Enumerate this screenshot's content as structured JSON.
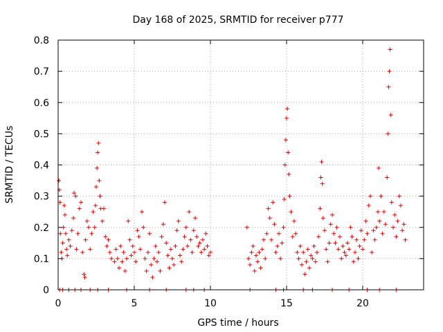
{
  "chart_data": {
    "type": "scatter",
    "title": "Day 168 of 2025, SRMTID for receiver p777",
    "xlabel": "GPS time / hours",
    "ylabel": "SRMTID / TECUs",
    "xlim": [
      0,
      24
    ],
    "ylim": [
      0,
      0.8
    ],
    "x_ticks": [
      0,
      5,
      10,
      15,
      20
    ],
    "x_tick_labels": [
      "0",
      "5",
      "10",
      "15",
      "20"
    ],
    "y_ticks": [
      0,
      0.1,
      0.2,
      0.3,
      0.4,
      0.5,
      0.6,
      0.7,
      0.8
    ],
    "y_tick_labels": [
      "0",
      "0.1",
      "0.2",
      "0.3",
      "0.4",
      "0.5",
      "0.6",
      "0.7",
      "0.8"
    ],
    "grid": true,
    "marker": "+",
    "color": "#e00000",
    "series": [
      {
        "name": "SRMTID",
        "points": [
          [
            0.05,
            0.35
          ],
          [
            0.08,
            0.32
          ],
          [
            0.12,
            0.28
          ],
          [
            0.15,
            0.18
          ],
          [
            0.2,
            0.12
          ],
          [
            0.25,
            0.1
          ],
          [
            0.3,
            0.15
          ],
          [
            0.35,
            0.2
          ],
          [
            0.4,
            0.27
          ],
          [
            0.45,
            0.24
          ],
          [
            0.5,
            0.18
          ],
          [
            0.55,
            0.13
          ],
          [
            0.6,
            0.11
          ],
          [
            0.7,
            0.16
          ],
          [
            0.8,
            0.14
          ],
          [
            0.9,
            0.19
          ],
          [
            1.0,
            0.23
          ],
          [
            1.05,
            0.31
          ],
          [
            1.15,
            0.3
          ],
          [
            1.2,
            0.13
          ],
          [
            1.3,
            0.18
          ],
          [
            1.4,
            0.26
          ],
          [
            1.5,
            0.28
          ],
          [
            1.6,
            0.12
          ],
          [
            1.7,
            0.05
          ],
          [
            1.75,
            0.04
          ],
          [
            1.8,
            0.16
          ],
          [
            1.9,
            0.22
          ],
          [
            2.0,
            0.2
          ],
          [
            2.1,
            0.13
          ],
          [
            2.2,
            0.18
          ],
          [
            2.3,
            0.25
          ],
          [
            2.4,
            0.2
          ],
          [
            2.45,
            0.27
          ],
          [
            2.5,
            0.33
          ],
          [
            2.55,
            0.39
          ],
          [
            2.6,
            0.44
          ],
          [
            2.65,
            0.47
          ],
          [
            2.7,
            0.35
          ],
          [
            2.75,
            0.3
          ],
          [
            2.8,
            0.26
          ],
          [
            2.9,
            0.22
          ],
          [
            3.0,
            0.26
          ],
          [
            3.1,
            0.17
          ],
          [
            3.2,
            0.14
          ],
          [
            3.3,
            0.16
          ],
          [
            3.4,
            0.12
          ],
          [
            3.5,
            0.1
          ],
          [
            3.7,
            0.09
          ],
          [
            3.8,
            0.13
          ],
          [
            3.9,
            0.1
          ],
          [
            4.0,
            0.07
          ],
          [
            4.1,
            0.14
          ],
          [
            4.2,
            0.09
          ],
          [
            4.3,
            0.12
          ],
          [
            4.4,
            0.06
          ],
          [
            4.5,
            0.1
          ],
          [
            4.6,
            0.22
          ],
          [
            4.7,
            0.16
          ],
          [
            4.8,
            0.11
          ],
          [
            4.9,
            0.14
          ],
          [
            5.0,
            0.12
          ],
          [
            5.1,
            0.09
          ],
          [
            5.2,
            0.19
          ],
          [
            5.3,
            0.17
          ],
          [
            5.4,
            0.13
          ],
          [
            5.5,
            0.25
          ],
          [
            5.6,
            0.2
          ],
          [
            5.7,
            0.1
          ],
          [
            5.8,
            0.06
          ],
          [
            5.9,
            0.12
          ],
          [
            6.0,
            0.18
          ],
          [
            6.1,
            0.08
          ],
          [
            6.2,
            0.04
          ],
          [
            6.3,
            0.1
          ],
          [
            6.4,
            0.14
          ],
          [
            6.5,
            0.09
          ],
          [
            6.6,
            0.12
          ],
          [
            6.7,
            0.06
          ],
          [
            6.8,
            0.17
          ],
          [
            6.9,
            0.21
          ],
          [
            7.0,
            0.28
          ],
          [
            7.1,
            0.15
          ],
          [
            7.2,
            0.11
          ],
          [
            7.3,
            0.07
          ],
          [
            7.4,
            0.13
          ],
          [
            7.5,
            0.1
          ],
          [
            7.6,
            0.08
          ],
          [
            7.7,
            0.14
          ],
          [
            7.8,
            0.19
          ],
          [
            7.9,
            0.22
          ],
          [
            8.0,
            0.11
          ],
          [
            8.1,
            0.09
          ],
          [
            8.2,
            0.13
          ],
          [
            8.3,
            0.17
          ],
          [
            8.4,
            0.2
          ],
          [
            8.5,
            0.14
          ],
          [
            8.6,
            0.25
          ],
          [
            8.7,
            0.16
          ],
          [
            8.8,
            0.12
          ],
          [
            8.9,
            0.19
          ],
          [
            9.0,
            0.23
          ],
          [
            9.1,
            0.17
          ],
          [
            9.2,
            0.14
          ],
          [
            9.3,
            0.15
          ],
          [
            9.4,
            0.12
          ],
          [
            9.5,
            0.16
          ],
          [
            9.6,
            0.13
          ],
          [
            9.7,
            0.18
          ],
          [
            9.8,
            0.14
          ],
          [
            9.9,
            0.11
          ],
          [
            10.0,
            0.12
          ],
          [
            12.4,
            0.2
          ],
          [
            12.5,
            0.1
          ],
          [
            12.6,
            0.08
          ],
          [
            12.7,
            0.12
          ],
          [
            12.8,
            0.14
          ],
          [
            12.9,
            0.06
          ],
          [
            13.0,
            0.11
          ],
          [
            13.1,
            0.09
          ],
          [
            13.2,
            0.12
          ],
          [
            13.3,
            0.07
          ],
          [
            13.4,
            0.13
          ],
          [
            13.5,
            0.16
          ],
          [
            13.6,
            0.1
          ],
          [
            13.7,
            0.18
          ],
          [
            13.8,
            0.26
          ],
          [
            13.9,
            0.23
          ],
          [
            14.0,
            0.16
          ],
          [
            14.1,
            0.28
          ],
          [
            14.2,
            0.21
          ],
          [
            14.3,
            0.12
          ],
          [
            14.4,
            0.14
          ],
          [
            14.5,
            0.18
          ],
          [
            14.6,
            0.1
          ],
          [
            14.7,
            0.15
          ],
          [
            14.8,
            0.2
          ],
          [
            14.85,
            0.29
          ],
          [
            14.9,
            0.4
          ],
          [
            14.95,
            0.48
          ],
          [
            15.0,
            0.55
          ],
          [
            15.05,
            0.58
          ],
          [
            15.1,
            0.44
          ],
          [
            15.15,
            0.37
          ],
          [
            15.2,
            0.3
          ],
          [
            15.3,
            0.25
          ],
          [
            15.4,
            0.17
          ],
          [
            15.5,
            0.22
          ],
          [
            15.6,
            0.18
          ],
          [
            15.7,
            0.12
          ],
          [
            15.8,
            0.1
          ],
          [
            15.9,
            0.14
          ],
          [
            16.0,
            0.08
          ],
          [
            16.1,
            0.12
          ],
          [
            16.2,
            0.05
          ],
          [
            16.3,
            0.09
          ],
          [
            16.4,
            0.13
          ],
          [
            16.5,
            0.07
          ],
          [
            16.6,
            0.11
          ],
          [
            16.7,
            0.1
          ],
          [
            16.8,
            0.14
          ],
          [
            16.9,
            0.09
          ],
          [
            17.0,
            0.12
          ],
          [
            17.1,
            0.17
          ],
          [
            17.2,
            0.26
          ],
          [
            17.25,
            0.36
          ],
          [
            17.3,
            0.41
          ],
          [
            17.35,
            0.34
          ],
          [
            17.4,
            0.23
          ],
          [
            17.5,
            0.19
          ],
          [
            17.6,
            0.13
          ],
          [
            17.7,
            0.09
          ],
          [
            17.8,
            0.15
          ],
          [
            17.9,
            0.21
          ],
          [
            18.0,
            0.24
          ],
          [
            18.1,
            0.18
          ],
          [
            18.2,
            0.15
          ],
          [
            18.3,
            0.2
          ],
          [
            18.4,
            0.13
          ],
          [
            18.5,
            0.17
          ],
          [
            18.6,
            0.1
          ],
          [
            18.7,
            0.14
          ],
          [
            18.8,
            0.12
          ],
          [
            18.9,
            0.11
          ],
          [
            19.0,
            0.15
          ],
          [
            19.1,
            0.13
          ],
          [
            19.2,
            0.2
          ],
          [
            19.3,
            0.17
          ],
          [
            19.4,
            0.09
          ],
          [
            19.5,
            0.12
          ],
          [
            19.6,
            0.16
          ],
          [
            19.7,
            0.1
          ],
          [
            19.8,
            0.14
          ],
          [
            19.9,
            0.19
          ],
          [
            20.0,
            0.13
          ],
          [
            20.1,
            0.16
          ],
          [
            20.2,
            0.22
          ],
          [
            20.3,
            0.18
          ],
          [
            20.4,
            0.27
          ],
          [
            20.5,
            0.3
          ],
          [
            20.6,
            0.12
          ],
          [
            20.7,
            0.19
          ],
          [
            20.8,
            0.16
          ],
          [
            20.9,
            0.2
          ],
          [
            21.0,
            0.25
          ],
          [
            21.05,
            0.39
          ],
          [
            21.1,
            0.22
          ],
          [
            21.2,
            0.3
          ],
          [
            21.3,
            0.18
          ],
          [
            21.4,
            0.25
          ],
          [
            21.5,
            0.21
          ],
          [
            21.6,
            0.36
          ],
          [
            21.65,
            0.5
          ],
          [
            21.7,
            0.65
          ],
          [
            21.75,
            0.7
          ],
          [
            21.8,
            0.77
          ],
          [
            21.85,
            0.56
          ],
          [
            21.9,
            0.28
          ],
          [
            22.0,
            0.2
          ],
          [
            22.1,
            0.24
          ],
          [
            22.2,
            0.17
          ],
          [
            22.3,
            0.22
          ],
          [
            22.4,
            0.3
          ],
          [
            22.5,
            0.27
          ],
          [
            22.6,
            0.19
          ],
          [
            22.7,
            0.21
          ],
          [
            22.8,
            0.16
          ],
          [
            0.1,
            0.0
          ],
          [
            0.3,
            0.0
          ],
          [
            0.7,
            0.0
          ],
          [
            1.1,
            0.0
          ],
          [
            1.5,
            0.0
          ],
          [
            2.1,
            0.0
          ],
          [
            2.6,
            0.0
          ],
          [
            3.3,
            0.0
          ],
          [
            4.5,
            0.0
          ],
          [
            6.0,
            0.0
          ],
          [
            7.1,
            0.0
          ],
          [
            8.4,
            0.0
          ],
          [
            8.9,
            0.0
          ],
          [
            9.6,
            0.0
          ],
          [
            12.6,
            0.0
          ],
          [
            14.3,
            0.0
          ],
          [
            14.8,
            0.0
          ],
          [
            16.1,
            0.0
          ],
          [
            16.7,
            0.0
          ],
          [
            18.0,
            0.0
          ],
          [
            19.1,
            0.0
          ],
          [
            20.3,
            0.0
          ],
          [
            21.1,
            0.0
          ],
          [
            22.2,
            0.0
          ]
        ]
      }
    ]
  }
}
